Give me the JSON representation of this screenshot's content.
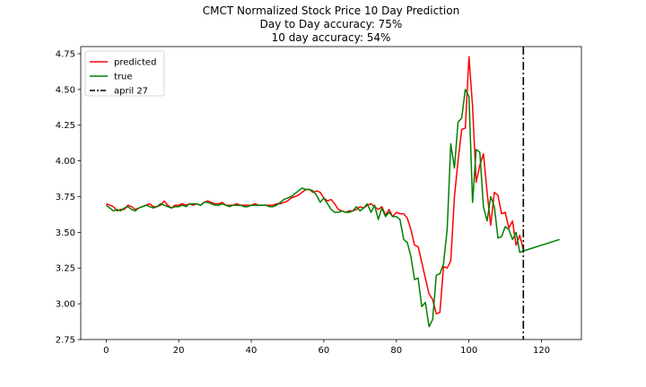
{
  "chart_data": {
    "type": "line",
    "title_lines": [
      "CMCT Normalized Stock Price 10 Day Prediction",
      "Day to Day accuracy: 75%",
      "10 day accuracy: 54%"
    ],
    "xlabel": "",
    "ylabel": "",
    "xlim": [
      -7,
      131
    ],
    "ylim": [
      2.75,
      4.8
    ],
    "xticks": [
      0,
      20,
      40,
      60,
      80,
      100,
      120
    ],
    "yticks": [
      2.75,
      3.0,
      3.25,
      3.5,
      3.75,
      4.0,
      4.25,
      4.5,
      4.75
    ],
    "ytick_format": "2dp",
    "grid": false,
    "legend_position": "top-left",
    "series": [
      {
        "name": "predicted",
        "color": "#ff0000",
        "x": [
          0,
          1,
          2,
          3,
          4,
          5,
          6,
          7,
          8,
          9,
          10,
          11,
          12,
          13,
          14,
          15,
          16,
          17,
          18,
          19,
          20,
          21,
          22,
          23,
          24,
          25,
          26,
          27,
          28,
          29,
          30,
          31,
          32,
          33,
          34,
          35,
          36,
          37,
          38,
          39,
          40,
          41,
          42,
          43,
          44,
          45,
          46,
          47,
          48,
          49,
          50,
          51,
          52,
          53,
          54,
          55,
          56,
          57,
          58,
          59,
          60,
          61,
          62,
          63,
          64,
          65,
          66,
          67,
          68,
          69,
          70,
          71,
          72,
          73,
          74,
          75,
          76,
          77,
          78,
          79,
          80,
          81,
          82,
          83,
          84,
          85,
          86,
          87,
          88,
          89,
          90,
          91,
          92,
          93,
          94,
          95,
          96,
          97,
          98,
          99,
          100,
          101,
          102,
          103,
          104,
          105,
          106,
          107,
          108,
          109,
          110,
          111,
          112,
          113,
          114,
          115
        ],
        "y": [
          3.7,
          3.69,
          3.68,
          3.65,
          3.66,
          3.66,
          3.69,
          3.68,
          3.66,
          3.67,
          3.68,
          3.69,
          3.7,
          3.68,
          3.68,
          3.69,
          3.72,
          3.69,
          3.67,
          3.69,
          3.69,
          3.7,
          3.69,
          3.7,
          3.69,
          3.7,
          3.69,
          3.71,
          3.72,
          3.71,
          3.7,
          3.7,
          3.71,
          3.69,
          3.69,
          3.69,
          3.7,
          3.69,
          3.69,
          3.69,
          3.69,
          3.7,
          3.69,
          3.69,
          3.69,
          3.69,
          3.69,
          3.7,
          3.7,
          3.71,
          3.72,
          3.74,
          3.75,
          3.76,
          3.78,
          3.8,
          3.8,
          3.78,
          3.79,
          3.78,
          3.74,
          3.72,
          3.73,
          3.7,
          3.66,
          3.65,
          3.64,
          3.65,
          3.65,
          3.66,
          3.68,
          3.67,
          3.69,
          3.7,
          3.68,
          3.66,
          3.68,
          3.62,
          3.66,
          3.61,
          3.64,
          3.63,
          3.63,
          3.6,
          3.52,
          3.41,
          3.4,
          3.29,
          3.18,
          3.07,
          3.03,
          2.93,
          2.94,
          3.26,
          3.25,
          3.3,
          3.75,
          4.0,
          4.22,
          4.23,
          4.73,
          4.38,
          3.85,
          3.97,
          4.05,
          3.78,
          3.55,
          3.78,
          3.76,
          3.63,
          3.64,
          3.53,
          3.58,
          3.41,
          3.48,
          3.38
        ],
        "linestyle": "solid"
      },
      {
        "name": "true",
        "color": "#008000",
        "x": [
          0,
          1,
          2,
          3,
          4,
          5,
          6,
          7,
          8,
          9,
          10,
          11,
          12,
          13,
          14,
          15,
          16,
          17,
          18,
          19,
          20,
          21,
          22,
          23,
          24,
          25,
          26,
          27,
          28,
          29,
          30,
          31,
          32,
          33,
          34,
          35,
          36,
          37,
          38,
          39,
          40,
          41,
          42,
          43,
          44,
          45,
          46,
          47,
          48,
          49,
          50,
          51,
          52,
          53,
          54,
          55,
          56,
          57,
          58,
          59,
          60,
          61,
          62,
          63,
          64,
          65,
          66,
          67,
          68,
          69,
          70,
          71,
          72,
          73,
          74,
          75,
          76,
          77,
          78,
          79,
          80,
          81,
          82,
          83,
          84,
          85,
          86,
          87,
          88,
          89,
          90,
          91,
          92,
          93,
          94,
          95,
          96,
          97,
          98,
          99,
          100,
          101,
          102,
          103,
          104,
          105,
          106,
          107,
          108,
          109,
          110,
          111,
          112,
          113,
          114,
          115,
          125
        ],
        "y": [
          3.69,
          3.67,
          3.65,
          3.66,
          3.65,
          3.67,
          3.68,
          3.66,
          3.65,
          3.67,
          3.68,
          3.69,
          3.68,
          3.67,
          3.68,
          3.7,
          3.69,
          3.68,
          3.67,
          3.68,
          3.68,
          3.69,
          3.68,
          3.7,
          3.7,
          3.7,
          3.69,
          3.71,
          3.71,
          3.7,
          3.69,
          3.69,
          3.7,
          3.69,
          3.68,
          3.69,
          3.69,
          3.69,
          3.68,
          3.68,
          3.69,
          3.69,
          3.69,
          3.69,
          3.69,
          3.68,
          3.68,
          3.69,
          3.71,
          3.73,
          3.74,
          3.75,
          3.77,
          3.79,
          3.81,
          3.8,
          3.8,
          3.79,
          3.76,
          3.71,
          3.74,
          3.7,
          3.66,
          3.64,
          3.64,
          3.65,
          3.64,
          3.64,
          3.65,
          3.68,
          3.65,
          3.67,
          3.7,
          3.64,
          3.69,
          3.59,
          3.67,
          3.61,
          3.64,
          3.61,
          3.61,
          3.59,
          3.45,
          3.43,
          3.33,
          3.17,
          3.18,
          2.98,
          3.01,
          2.84,
          2.89,
          3.2,
          3.21,
          3.28,
          3.52,
          4.12,
          3.95,
          4.27,
          4.3,
          4.5,
          4.45,
          3.71,
          4.08,
          4.06,
          3.68,
          3.58,
          3.75,
          3.68,
          3.46,
          3.47,
          3.54,
          3.52,
          3.45,
          3.5,
          3.36,
          3.37,
          3.45
        ],
        "linestyle": "solid"
      },
      {
        "name": "april 27",
        "color": "#000000",
        "x_value": 115,
        "linestyle": "dashdot",
        "kind": "vline"
      }
    ]
  }
}
